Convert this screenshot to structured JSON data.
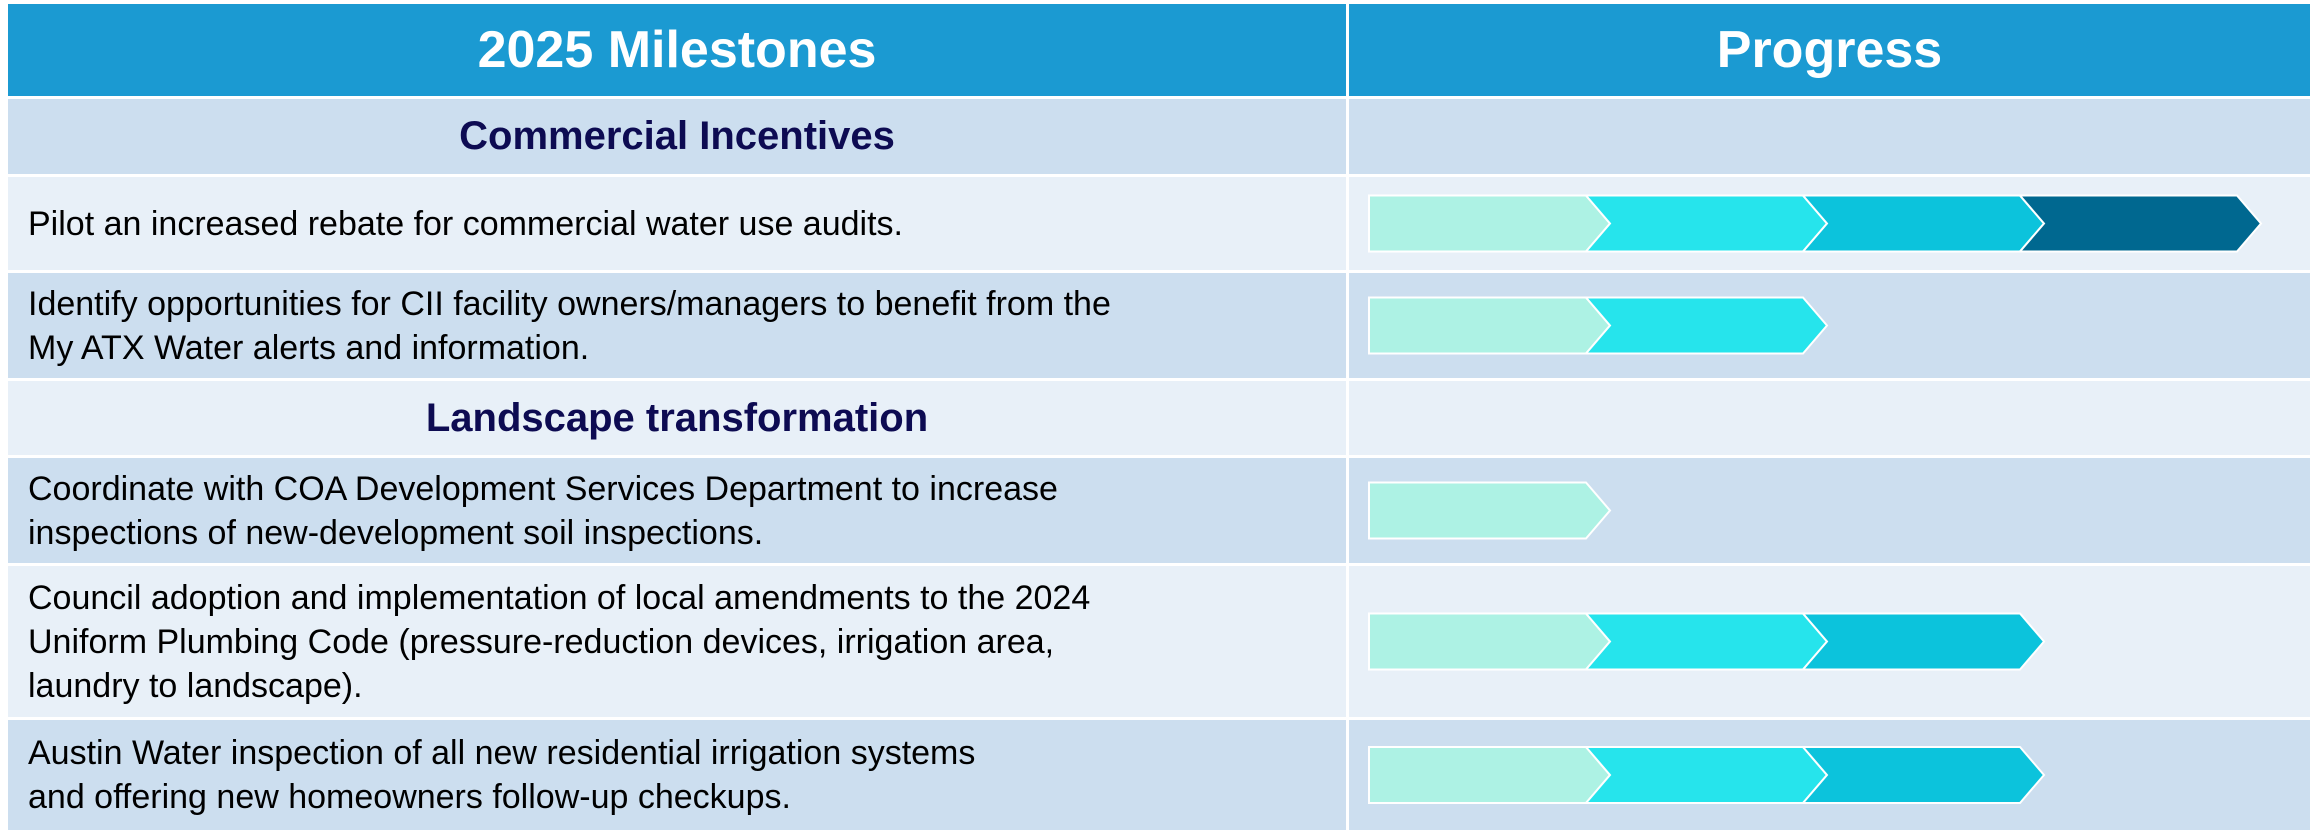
{
  "header": {
    "milestones": "2025 Milestones",
    "progress": "Progress"
  },
  "stage_colors": [
    "#adf2e4",
    "#26e4ec",
    "#0cc3dc",
    "#006890"
  ],
  "rows": [
    {
      "section": "Commercial Incentives"
    },
    {
      "lines": [
        "Pilot an increased rebate for commercial water use audits."
      ],
      "progress": 4
    },
    {
      "lines": [
        "Identify opportunities for CII facility owners/managers to benefit from the",
        "My ATX Water alerts and information."
      ],
      "progress": 2
    },
    {
      "section": "Landscape transformation"
    },
    {
      "lines": [
        "Coordinate with COA Development Services Department to increase",
        "inspections of new-development soil inspections."
      ],
      "progress": 1
    },
    {
      "lines": [
        "Council adoption and implementation of local amendments to the 2024",
        "Uniform Plumbing Code (pressure-reduction devices, irrigation area,",
        "laundry to landscape)."
      ],
      "progress": 3
    },
    {
      "lines": [
        "Austin Water inspection of all new residential irrigation systems",
        "and offering new homeowners follow-up checkups."
      ],
      "progress": 3
    }
  ]
}
